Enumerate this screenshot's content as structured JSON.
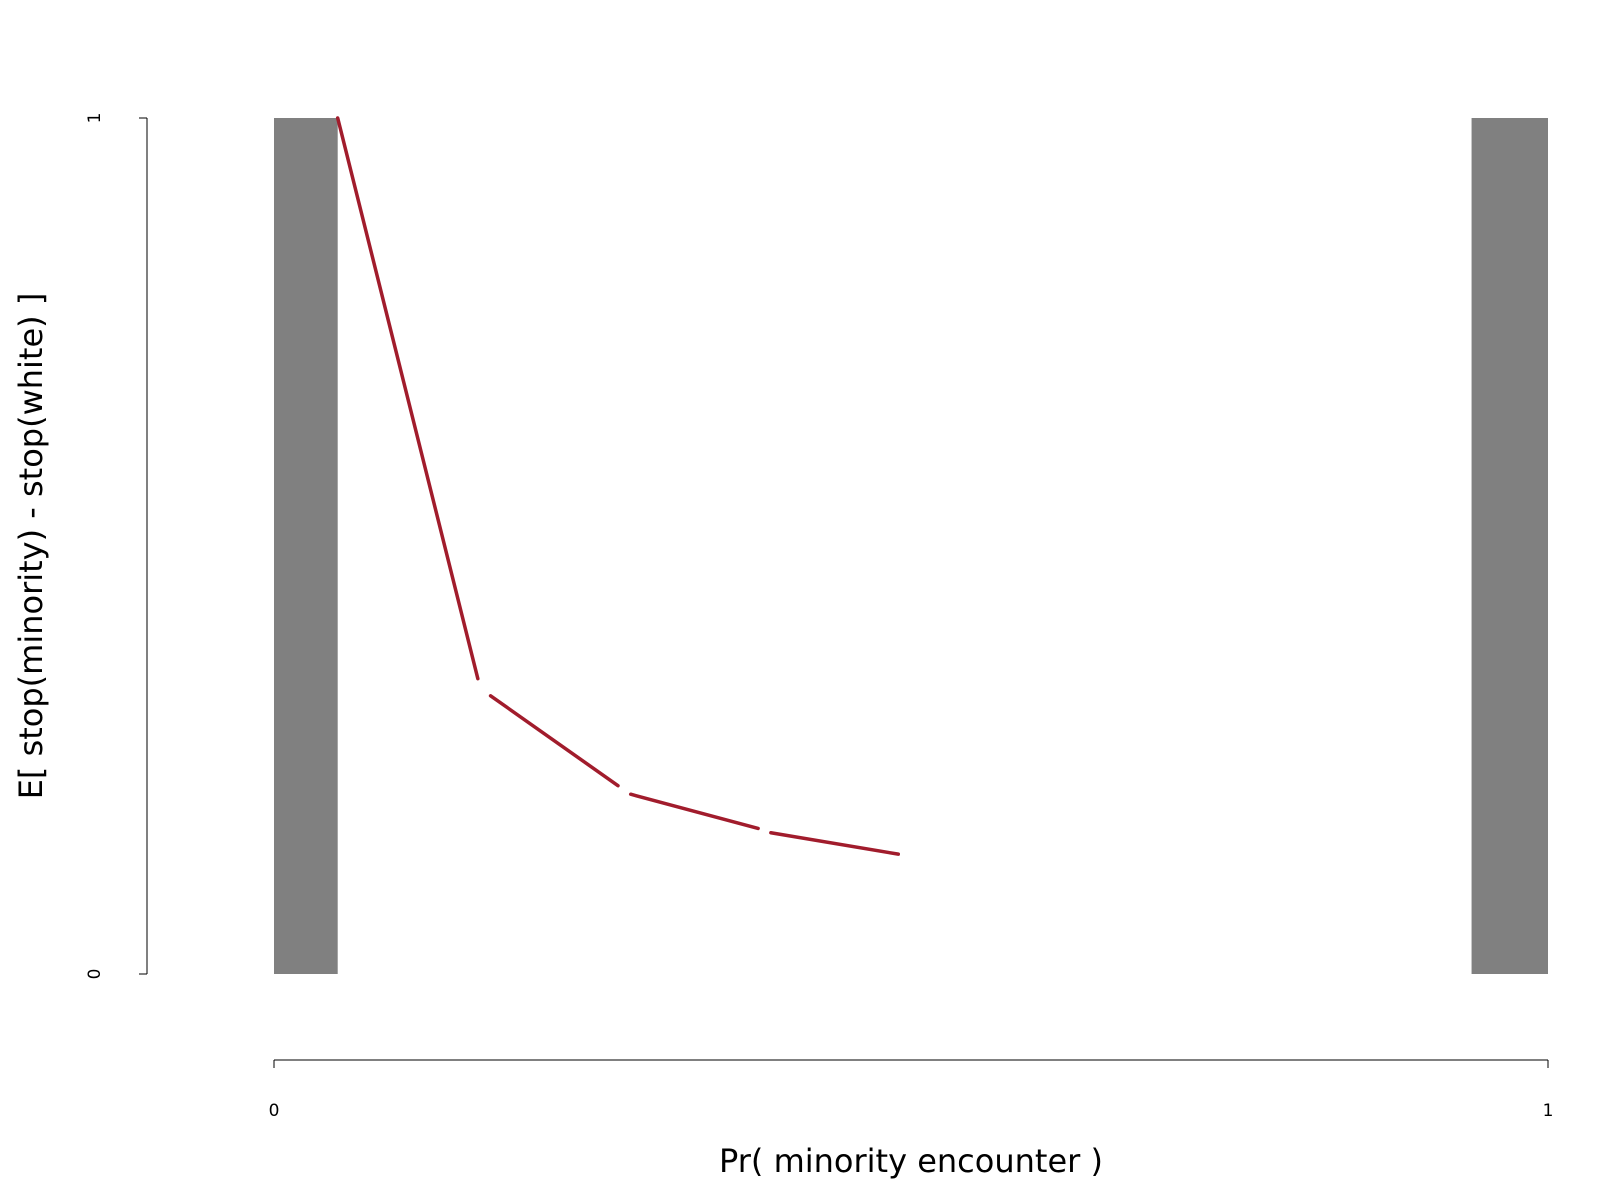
{
  "chart_data": {
    "type": "line",
    "title": "",
    "xlabel": "Pr( minority encounter )",
    "ylabel": "E[ stop(minority) - stop(white) ]",
    "xlim": [
      0,
      1
    ],
    "ylim": [
      0,
      1
    ],
    "x_ticks": [
      "0",
      "1"
    ],
    "y_ticks": [
      "0",
      "1"
    ],
    "grid": false,
    "legend": "none",
    "shaded_bands": [
      {
        "x0": 0.0,
        "x1": 0.05
      },
      {
        "x0": 0.94,
        "x1": 1.0
      }
    ],
    "series": [
      {
        "x": [
          0.05,
          0.16,
          0.17,
          0.27,
          0.28,
          0.38,
          0.39,
          0.49
        ],
        "y": [
          1.0,
          0.345,
          0.325,
          0.22,
          0.21,
          0.17,
          0.165,
          0.14
        ]
      }
    ],
    "colors": {
      "line": "#A11C2C",
      "band": "#808080",
      "axis": "#000000"
    }
  }
}
